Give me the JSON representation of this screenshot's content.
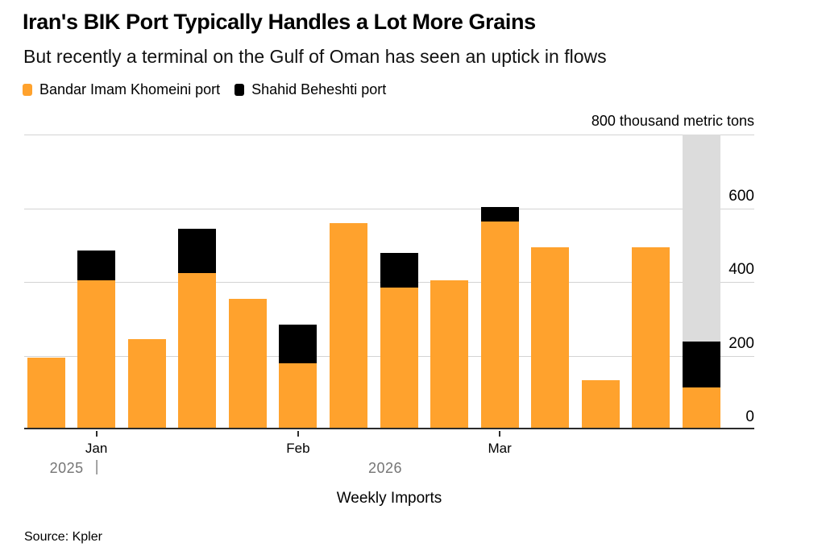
{
  "header": {
    "title": "Iran's BIK Port Typically Handles a Lot More Grains",
    "subtitle": "But recently a terminal on the Gulf of Oman has seen an uptick in flows"
  },
  "legend": [
    {
      "label": "Bandar Imam Khomeini port",
      "color": "#FFA22D"
    },
    {
      "label": "Shahid Beheshti port",
      "color": "#000000"
    }
  ],
  "chart_data": {
    "type": "bar",
    "stacked": true,
    "title": "Iran's BIK Port Typically Handles a Lot More Grains",
    "xlabel": "Weekly Imports",
    "ylabel": "thousand metric tons",
    "unit_label": "800 thousand metric tons",
    "ylim": [
      0,
      800
    ],
    "yticks": [
      0,
      200,
      400,
      600
    ],
    "grid": true,
    "legend_position": "top",
    "series": [
      {
        "name": "Bandar Imam Khomeini port",
        "color": "#FFA22D",
        "values": [
          190,
          400,
          240,
          420,
          350,
          175,
          555,
          380,
          400,
          560,
          490,
          130,
          490,
          110
        ]
      },
      {
        "name": "Shahid Beheshti port",
        "color": "#000000",
        "values": [
          0,
          80,
          0,
          120,
          0,
          105,
          0,
          95,
          0,
          40,
          0,
          0,
          0,
          125
        ]
      }
    ],
    "x_ticks": [
      {
        "label": "Jan",
        "bar_index": 1
      },
      {
        "label": "Feb",
        "bar_index": 5
      },
      {
        "label": "Mar",
        "bar_index": 9
      }
    ],
    "year_labels": [
      {
        "label": "2025",
        "separator": "|",
        "bar_index": 1
      },
      {
        "label": "2026",
        "x": 448
      }
    ],
    "highlight": {
      "bar_index": 13,
      "color": "#dcdcdc"
    },
    "colors": {
      "gridline": "#d4d4d4",
      "axis": "#2b2b2b",
      "year_text": "#757575"
    }
  },
  "footer": {
    "source": "Source: Kpler"
  }
}
